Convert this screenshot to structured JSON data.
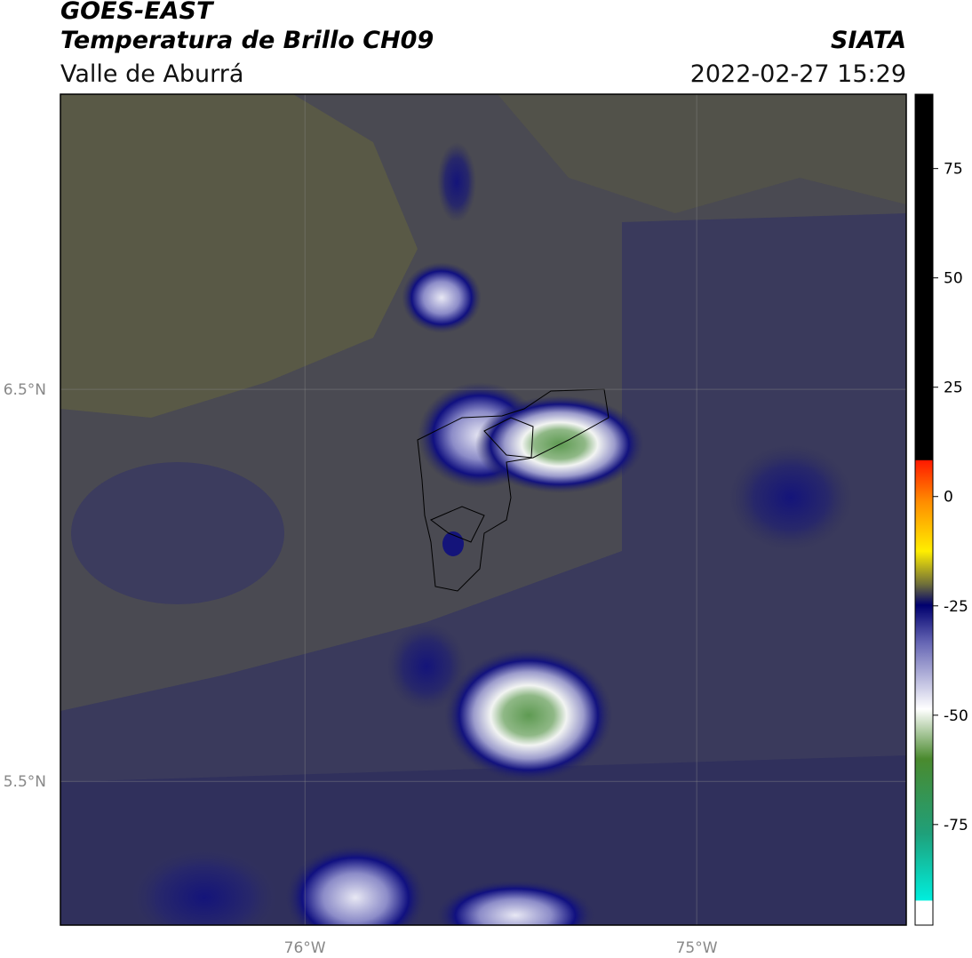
{
  "header": {
    "title": "GOES-EAST",
    "subtitle": "Temperatura de Brillo CH09",
    "region": "Valle de Aburrá",
    "source": "SIATA",
    "timestamp": "2022-02-27 15:29"
  },
  "map": {
    "xlim": [
      -76.624,
      -74.465
    ],
    "ylim": [
      5.133,
      7.253
    ],
    "xticks": [
      {
        "value": -76,
        "label": "76°W"
      },
      {
        "value": -75,
        "label": "75°W"
      }
    ],
    "yticks": [
      {
        "value": 6.5,
        "label": "6.5°N"
      },
      {
        "value": 5.5,
        "label": "5.5°N"
      }
    ]
  },
  "colorbar": {
    "lim": [
      -98,
      92
    ],
    "ticks": [
      75,
      50,
      25,
      0,
      -25,
      -50,
      -75
    ]
  }
}
